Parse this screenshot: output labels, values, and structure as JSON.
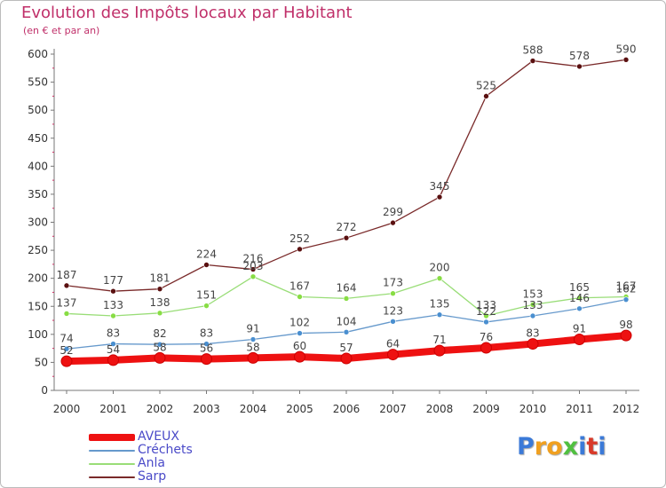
{
  "title": "Evolution des Impôts locaux par Habitant",
  "subtitle": "(en € et par an)",
  "logo": {
    "letters": [
      "P",
      "r",
      "o",
      "x",
      "i",
      "t",
      "i"
    ],
    "colors": [
      "#3b7ad8",
      "#f0a020",
      "#f0a020",
      "#50c040",
      "#3b7ad8",
      "#d83a2a",
      "#3b7ad8"
    ]
  },
  "colors": {
    "title": "#c0306a",
    "axis": "#777777",
    "tick_text": "#333333",
    "value_text": "#444444",
    "legend_text": "#4a4ac8"
  },
  "chart_data": {
    "type": "line",
    "title": "Evolution des Impôts locaux par Habitant",
    "subtitle": "(en € et par an)",
    "xlabel": "",
    "ylabel": "",
    "x": [
      "2000",
      "2001",
      "2002",
      "2003",
      "2004",
      "2005",
      "2006",
      "2007",
      "2008",
      "2009",
      "2010",
      "2011",
      "2012"
    ],
    "ylim": [
      0,
      600
    ],
    "yticks": [
      0,
      50,
      100,
      150,
      200,
      250,
      300,
      350,
      400,
      450,
      500,
      550,
      600
    ],
    "grid": false,
    "legend_position": "bottom-left",
    "series": [
      {
        "name": "AVEUX",
        "color": "#ee1111",
        "style": "thick",
        "values": [
          52,
          54,
          58,
          56,
          58,
          60,
          57,
          64,
          71,
          76,
          83,
          91,
          98
        ]
      },
      {
        "name": "Créchets",
        "color": "#6699cc",
        "marker_color": "#4a8fd0",
        "style": "thin",
        "values": [
          74,
          83,
          82,
          83,
          91,
          102,
          104,
          123,
          135,
          122,
          133,
          146,
          162
        ]
      },
      {
        "name": "Anla",
        "color": "#99dd77",
        "marker_color": "#88dd44",
        "style": "thin",
        "values": [
          137,
          133,
          138,
          151,
          203,
          167,
          164,
          173,
          200,
          133,
          153,
          165,
          167
        ]
      },
      {
        "name": "Sarp",
        "color": "#7a2a2a",
        "marker_color": "#5a1010",
        "style": "thin",
        "values": [
          187,
          177,
          181,
          224,
          216,
          252,
          272,
          299,
          345,
          525,
          588,
          578,
          590
        ]
      }
    ]
  }
}
